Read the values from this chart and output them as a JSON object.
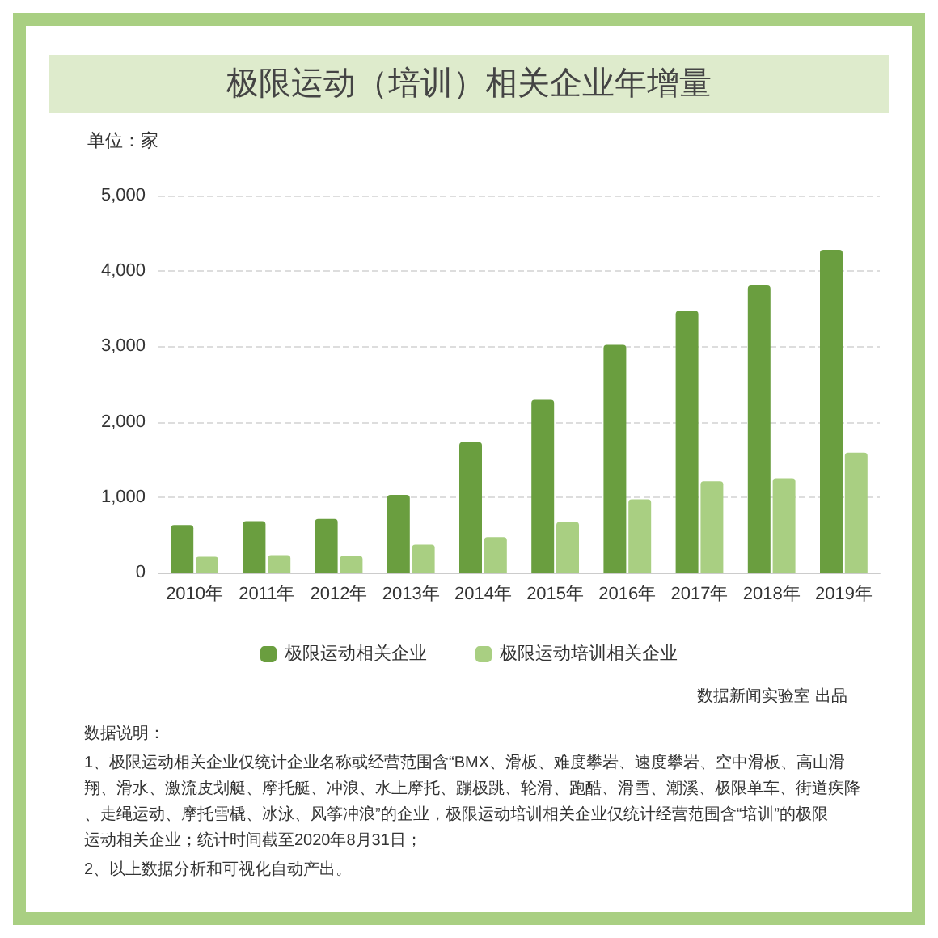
{
  "chart_data": {
    "type": "bar",
    "title": "极限运动（培训）相关企业年增量",
    "ylabel": "单位：家",
    "categories": [
      "2010年",
      "2011年",
      "2012年",
      "2013年",
      "2014年",
      "2015年",
      "2016年",
      "2017年",
      "2018年",
      "2019年"
    ],
    "series": [
      {
        "name": "极限运动相关企业",
        "color": "#6a9e3f",
        "values": [
          630,
          680,
          710,
          1030,
          1730,
          2290,
          3020,
          3470,
          3810,
          4280
        ]
      },
      {
        "name": "极限运动培训相关企业",
        "color": "#a9cf82",
        "values": [
          210,
          230,
          220,
          370,
          470,
          670,
          970,
          1210,
          1250,
          1590
        ]
      }
    ],
    "ylim": [
      0,
      5000
    ],
    "yticks": [
      0,
      {
        "value": 1000,
        "label": "1,000"
      },
      {
        "value": 2000,
        "label": "2,000"
      },
      {
        "value": 3000,
        "label": "3,000"
      },
      {
        "value": 4000,
        "label": "4,000"
      },
      {
        "value": 5000,
        "label": "5,000"
      }
    ],
    "grid": "y",
    "legend": "bottom",
    "annotations": [
      "数据新闻实验室 出品",
      "数据说明：",
      "1、极限运动相关企业仅统计企业名称或经营范围含“BMX、滑板、难度攀岩、速度攀岩、空中滑板、高山滑翔、滑水、激流皮划艇、摩托艇、冲浪、水上摩托、蹦极跳、轮滑、跑酷、滑雪、潮溪、极限单车、街道疾降、走绳运动、摩托雪橇、冰泳、风筝冲浪”的企业，极限运动培训相关企业仅统计经营范围含“培训”的极限运动相关企业；统计时间截至2020年8月31日；",
      "2、以上数据分析和可视化自动产出。"
    ]
  }
}
